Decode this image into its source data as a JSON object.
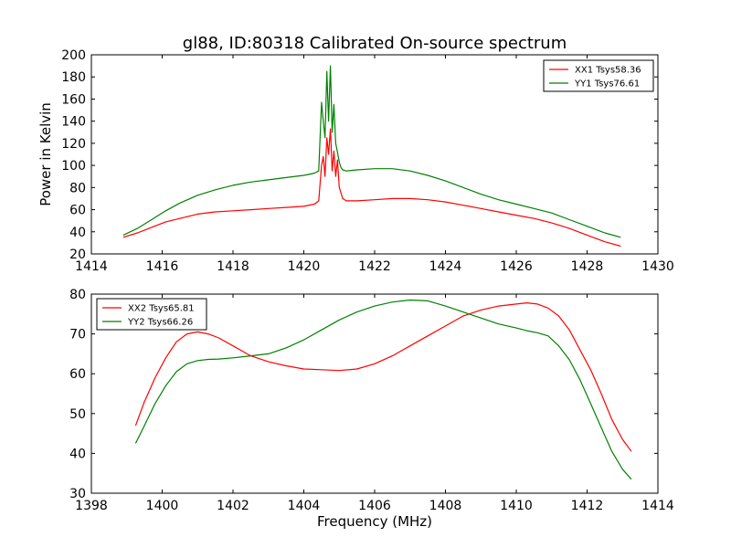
{
  "chart_data": [
    {
      "type": "line",
      "title": "gl88, ID:80318 Calibrated On-source spectrum",
      "xlabel": "",
      "ylabel": "Power in Kelvin",
      "xlim": [
        1414,
        1430
      ],
      "ylim": [
        20,
        200
      ],
      "xticks": [
        "1414",
        "1416",
        "1418",
        "1420",
        "1422",
        "1424",
        "1426",
        "1428",
        "1430"
      ],
      "yticks": [
        "20",
        "40",
        "60",
        "80",
        "100",
        "120",
        "140",
        "160",
        "180",
        "200"
      ],
      "legend_position": "top-right",
      "grid": false,
      "series": [
        {
          "name": "XX1 Tsys58.36",
          "color": "#ff0000",
          "x": [
            1414.9,
            1415.3,
            1415.7,
            1416.1,
            1416.5,
            1417.0,
            1417.5,
            1418.0,
            1418.5,
            1419.0,
            1419.5,
            1420.0,
            1420.3,
            1420.42,
            1420.5,
            1420.55,
            1420.6,
            1420.65,
            1420.7,
            1420.75,
            1420.8,
            1420.85,
            1420.9,
            1420.95,
            1421.0,
            1421.05,
            1421.1,
            1421.2,
            1421.5,
            1422.0,
            1422.5,
            1423.0,
            1423.5,
            1424.0,
            1424.5,
            1425.0,
            1425.5,
            1426.0,
            1426.5,
            1427.0,
            1427.5,
            1428.0,
            1428.5,
            1428.95
          ],
          "y": [
            35,
            39,
            44,
            49,
            52,
            56,
            58,
            59,
            60,
            61,
            62,
            63,
            65,
            68,
            100,
            108,
            90,
            125,
            110,
            133,
            95,
            113,
            90,
            105,
            80,
            75,
            70,
            68,
            68,
            69,
            70,
            70,
            69,
            67,
            64,
            61,
            58,
            55,
            52,
            48,
            43,
            37,
            31,
            27
          ]
        },
        {
          "name": "YY1 Tsys76.61",
          "color": "#008000",
          "x": [
            1414.9,
            1415.3,
            1415.7,
            1416.1,
            1416.5,
            1417.0,
            1417.5,
            1418.0,
            1418.5,
            1419.0,
            1419.5,
            1420.0,
            1420.3,
            1420.42,
            1420.5,
            1420.55,
            1420.6,
            1420.65,
            1420.7,
            1420.75,
            1420.8,
            1420.85,
            1420.9,
            1420.95,
            1421.0,
            1421.05,
            1421.1,
            1421.2,
            1421.5,
            1422.0,
            1422.5,
            1423.0,
            1423.5,
            1424.0,
            1424.5,
            1425.0,
            1425.5,
            1426.0,
            1426.5,
            1427.0,
            1427.5,
            1428.0,
            1428.5,
            1428.95
          ],
          "y": [
            37,
            43,
            51,
            59,
            66,
            73,
            78,
            82,
            85,
            87,
            89,
            91,
            93,
            95,
            157,
            140,
            125,
            185,
            140,
            190,
            130,
            155,
            120,
            112,
            103,
            98,
            96,
            95,
            96,
            97,
            97,
            95,
            91,
            86,
            80,
            74,
            69,
            65,
            61,
            57,
            51,
            45,
            39,
            35
          ]
        }
      ]
    },
    {
      "type": "line",
      "title": "",
      "xlabel": "Frequency (MHz)",
      "ylabel": "",
      "xlim": [
        1398,
        1414
      ],
      "ylim": [
        30,
        80
      ],
      "xticks": [
        "1398",
        "1400",
        "1402",
        "1404",
        "1406",
        "1408",
        "1410",
        "1412",
        "1414"
      ],
      "yticks": [
        "30",
        "40",
        "50",
        "60",
        "70",
        "80"
      ],
      "legend_position": "top-left",
      "grid": false,
      "series": [
        {
          "name": "XX2 Tsys65.81",
          "color": "#ff0000",
          "x": [
            1399.25,
            1399.5,
            1399.8,
            1400.1,
            1400.4,
            1400.7,
            1401.0,
            1401.3,
            1401.6,
            1402.0,
            1402.5,
            1403.0,
            1403.5,
            1404.0,
            1404.5,
            1405.0,
            1405.5,
            1406.0,
            1406.5,
            1407.0,
            1407.5,
            1408.0,
            1408.5,
            1409.0,
            1409.5,
            1410.0,
            1410.3,
            1410.6,
            1410.9,
            1411.2,
            1411.5,
            1411.8,
            1412.1,
            1412.4,
            1412.7,
            1413.0,
            1413.25
          ],
          "y": [
            47,
            53,
            59,
            64,
            68,
            70,
            70.5,
            70,
            69,
            67,
            64.5,
            63,
            62,
            61.2,
            61,
            60.8,
            61.2,
            62.5,
            64.5,
            67,
            69.5,
            72,
            74.5,
            76,
            77,
            77.5,
            77.8,
            77.5,
            76.5,
            74.5,
            71,
            66,
            61,
            55,
            48.5,
            43.5,
            40.5
          ]
        },
        {
          "name": "YY2 Tsys66.26",
          "color": "#008000",
          "x": [
            1399.25,
            1399.5,
            1399.8,
            1400.1,
            1400.4,
            1400.7,
            1401.0,
            1401.3,
            1401.6,
            1402.0,
            1402.5,
            1403.0,
            1403.5,
            1404.0,
            1404.5,
            1405.0,
            1405.5,
            1406.0,
            1406.5,
            1407.0,
            1407.5,
            1408.0,
            1408.5,
            1409.0,
            1409.5,
            1410.0,
            1410.3,
            1410.6,
            1410.9,
            1411.2,
            1411.5,
            1411.8,
            1412.1,
            1412.4,
            1412.7,
            1413.0,
            1413.25
          ],
          "y": [
            42.5,
            47,
            52.5,
            57,
            60.5,
            62.5,
            63.3,
            63.6,
            63.7,
            64,
            64.5,
            65,
            66.5,
            68.5,
            71,
            73.5,
            75.5,
            77,
            78,
            78.5,
            78.3,
            77,
            75.5,
            74,
            72.5,
            71.5,
            70.8,
            70.3,
            69.5,
            67,
            63.5,
            58.5,
            52.5,
            46.5,
            40.5,
            36,
            33.5
          ]
        }
      ]
    }
  ]
}
